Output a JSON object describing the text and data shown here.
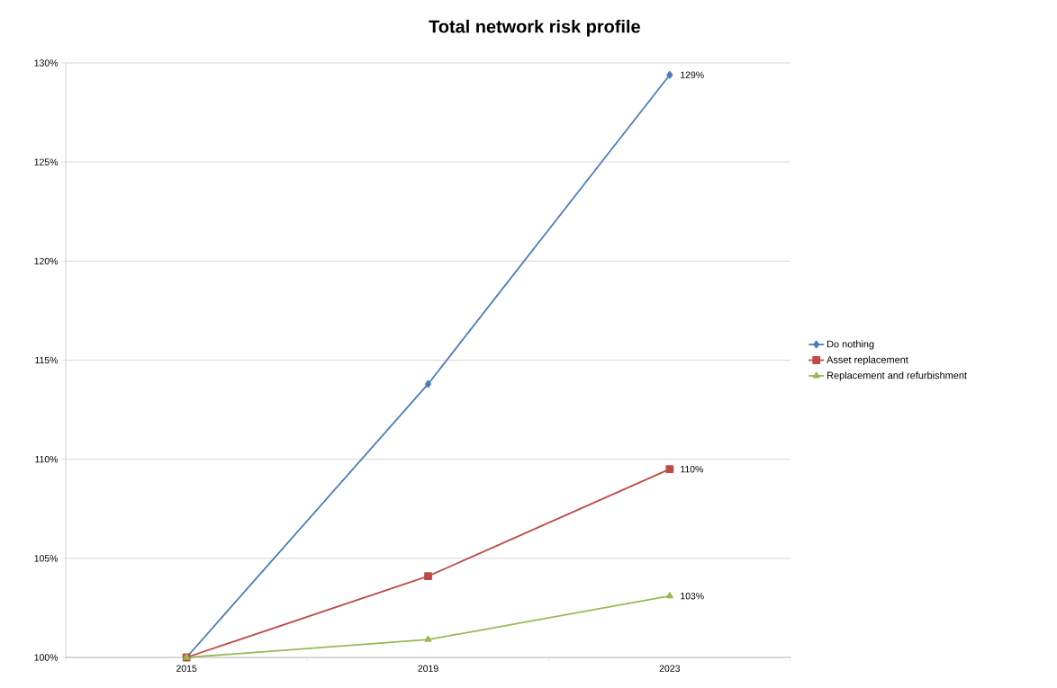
{
  "chart_data": {
    "type": "line",
    "title": "Total network risk profile",
    "categories": [
      "2015",
      "2019",
      "2023"
    ],
    "series": [
      {
        "name": "Do nothing",
        "color": "#4a7ebb",
        "marker": "diamond",
        "values": [
          100,
          113.8,
          129.4
        ],
        "value_labels": [
          null,
          null,
          "129%"
        ]
      },
      {
        "name": "Asset replacement",
        "color": "#be4b48",
        "marker": "square",
        "values": [
          100,
          104.1,
          109.5
        ],
        "value_labels": [
          null,
          null,
          "110%"
        ]
      },
      {
        "name": "Replacement and refurbishment",
        "color": "#98b954",
        "marker": "triangle",
        "values": [
          100,
          100.9,
          103.1
        ],
        "value_labels": [
          null,
          null,
          "103%"
        ]
      }
    ],
    "ylim": [
      100,
      130
    ],
    "yticks": [
      {
        "value": 100,
        "label": "100%"
      },
      {
        "value": 105,
        "label": "105%"
      },
      {
        "value": 110,
        "label": "110%"
      },
      {
        "value": 115,
        "label": "115%"
      },
      {
        "value": 120,
        "label": "120%"
      },
      {
        "value": 125,
        "label": "125%"
      },
      {
        "value": 130,
        "label": "130%"
      }
    ],
    "grid": "y",
    "legend": "right"
  }
}
